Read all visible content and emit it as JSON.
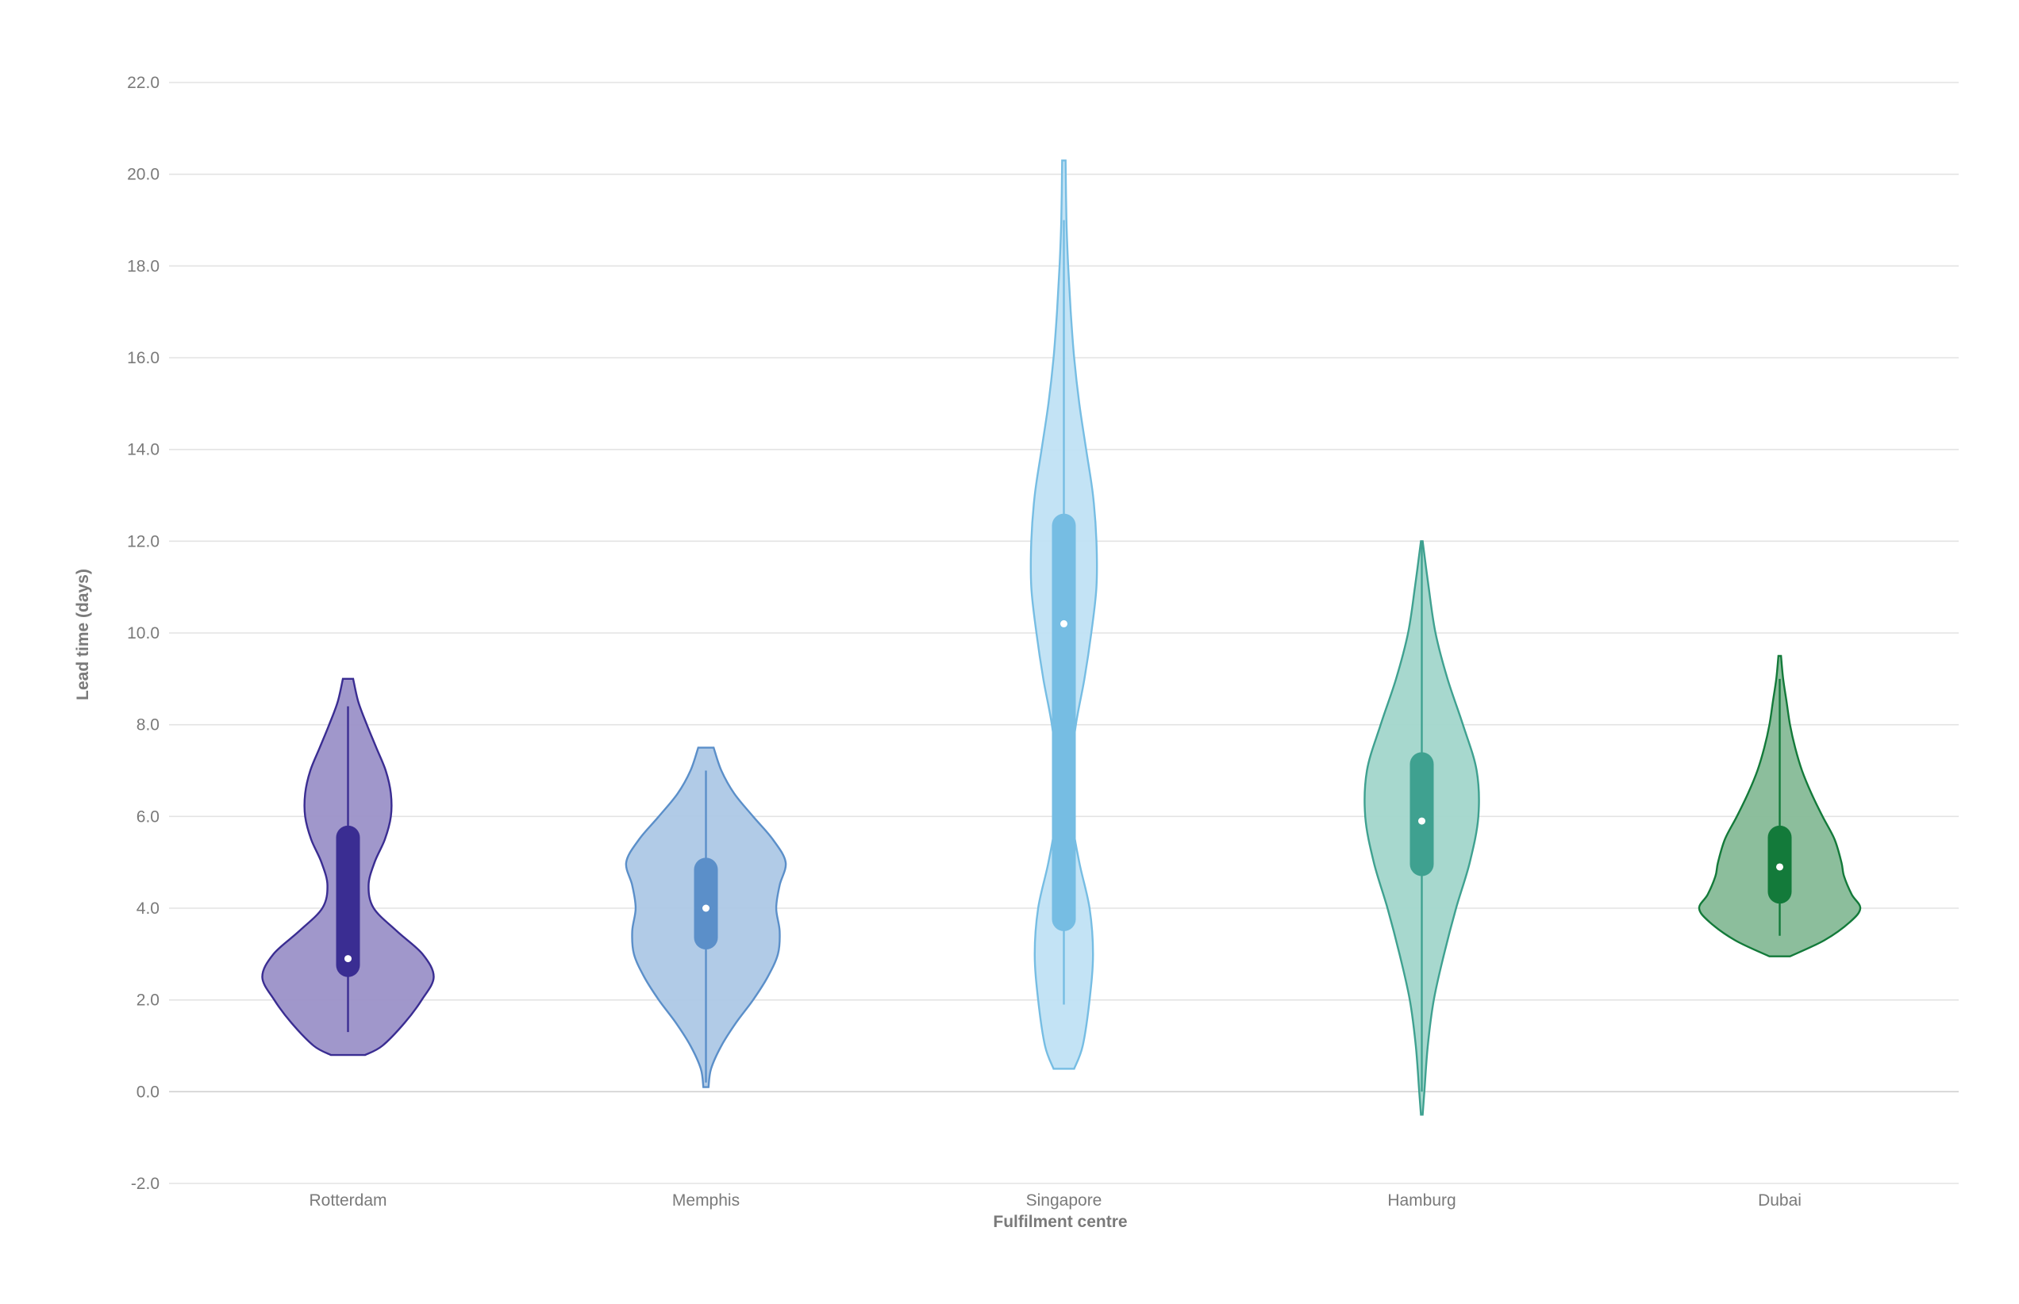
{
  "chart_data": {
    "type": "violin",
    "title": "",
    "xlabel": "Fulfilment centre",
    "ylabel": "Lead time (days)",
    "ylim": [
      -2,
      22
    ],
    "yticks": [
      "-2.0",
      "0.0",
      "2.0",
      "4.0",
      "6.0",
      "8.0",
      "10.0",
      "12.0",
      "14.0",
      "16.0",
      "18.0",
      "20.0",
      "22.0"
    ],
    "ytick_values": [
      -2,
      0,
      2,
      4,
      6,
      8,
      10,
      12,
      14,
      16,
      18,
      20,
      22
    ],
    "grid": true,
    "categories": [
      "Rotterdam",
      "Memphis",
      "Singapore",
      "Hamburg",
      "Dubai"
    ],
    "series": [
      {
        "color": "#3a2d92",
        "fill": "#9b91c8",
        "min": 1.3,
        "q1": 2.5,
        "median": 2.9,
        "q3": 5.8,
        "max": 8.4,
        "kde_min": 0.8,
        "kde_max": 9.0,
        "profile": [
          [
            0.8,
            0.2
          ],
          [
            1.0,
            0.4
          ],
          [
            1.5,
            0.66
          ],
          [
            2.0,
            0.86
          ],
          [
            2.5,
            1.0
          ],
          [
            3.0,
            0.87
          ],
          [
            3.5,
            0.57
          ],
          [
            4.0,
            0.3
          ],
          [
            4.5,
            0.24
          ],
          [
            5.0,
            0.31
          ],
          [
            5.5,
            0.43
          ],
          [
            6.0,
            0.5
          ],
          [
            6.5,
            0.5
          ],
          [
            7.0,
            0.44
          ],
          [
            7.5,
            0.33
          ],
          [
            8.0,
            0.22
          ],
          [
            8.5,
            0.12
          ],
          [
            9.0,
            0.06
          ]
        ]
      },
      {
        "color": "#5b8fc9",
        "fill": "#adc8e6",
        "min": 0.2,
        "q1": 3.1,
        "median": 4.0,
        "q3": 5.1,
        "max": 7.0,
        "kde_min": 0.1,
        "kde_max": 7.5,
        "profile": [
          [
            0.1,
            0.03
          ],
          [
            0.5,
            0.06
          ],
          [
            1.0,
            0.18
          ],
          [
            1.5,
            0.35
          ],
          [
            2.0,
            0.55
          ],
          [
            2.5,
            0.72
          ],
          [
            3.0,
            0.84
          ],
          [
            3.5,
            0.86
          ],
          [
            4.0,
            0.82
          ],
          [
            4.5,
            0.86
          ],
          [
            5.0,
            0.93
          ],
          [
            5.5,
            0.78
          ],
          [
            6.0,
            0.55
          ],
          [
            6.5,
            0.33
          ],
          [
            7.0,
            0.18
          ],
          [
            7.5,
            0.09
          ]
        ]
      },
      {
        "color": "#76bde3",
        "fill": "#c0e1f4",
        "min": 1.9,
        "q1": 3.5,
        "median": 10.2,
        "q3": 12.6,
        "max": 19.0,
        "kde_min": 0.5,
        "kde_max": 20.3,
        "profile": [
          [
            0.5,
            0.12
          ],
          [
            1.0,
            0.22
          ],
          [
            2.0,
            0.3
          ],
          [
            3.0,
            0.34
          ],
          [
            4.0,
            0.3
          ],
          [
            5.0,
            0.18
          ],
          [
            6.0,
            0.09
          ],
          [
            7.0,
            0.08
          ],
          [
            8.0,
            0.14
          ],
          [
            9.0,
            0.24
          ],
          [
            10.0,
            0.32
          ],
          [
            11.0,
            0.38
          ],
          [
            12.0,
            0.38
          ],
          [
            13.0,
            0.34
          ],
          [
            14.0,
            0.26
          ],
          [
            15.0,
            0.18
          ],
          [
            16.0,
            0.12
          ],
          [
            17.0,
            0.08
          ],
          [
            18.0,
            0.05
          ],
          [
            19.0,
            0.03
          ],
          [
            20.3,
            0.02
          ]
        ]
      },
      {
        "color": "#3fa190",
        "fill": "#a2d6cb",
        "min": 0.0,
        "q1": 4.7,
        "median": 5.9,
        "q3": 7.4,
        "max": 12.0,
        "kde_min": -0.5,
        "kde_max": 12.0,
        "profile": [
          [
            -0.5,
            0.01
          ],
          [
            0.0,
            0.03
          ],
          [
            1.0,
            0.07
          ],
          [
            2.0,
            0.14
          ],
          [
            3.0,
            0.26
          ],
          [
            4.0,
            0.4
          ],
          [
            5.0,
            0.56
          ],
          [
            6.0,
            0.66
          ],
          [
            7.0,
            0.64
          ],
          [
            8.0,
            0.48
          ],
          [
            9.0,
            0.3
          ],
          [
            10.0,
            0.16
          ],
          [
            11.0,
            0.08
          ],
          [
            12.0,
            0.01
          ]
        ]
      },
      {
        "color": "#137a3a",
        "fill": "#86bb97",
        "min": 3.4,
        "q1": 4.1,
        "median": 4.9,
        "q3": 5.8,
        "max": 9.0,
        "kde_min": 2.95,
        "kde_max": 9.5,
        "profile": [
          [
            2.95,
            0.12
          ],
          [
            3.3,
            0.52
          ],
          [
            3.7,
            0.82
          ],
          [
            4.0,
            0.94
          ],
          [
            4.3,
            0.84
          ],
          [
            4.7,
            0.75
          ],
          [
            5.0,
            0.72
          ],
          [
            5.5,
            0.64
          ],
          [
            6.0,
            0.5
          ],
          [
            6.5,
            0.37
          ],
          [
            7.0,
            0.26
          ],
          [
            7.5,
            0.18
          ],
          [
            8.0,
            0.12
          ],
          [
            8.5,
            0.08
          ],
          [
            9.0,
            0.04
          ],
          [
            9.5,
            0.015
          ]
        ]
      }
    ]
  }
}
